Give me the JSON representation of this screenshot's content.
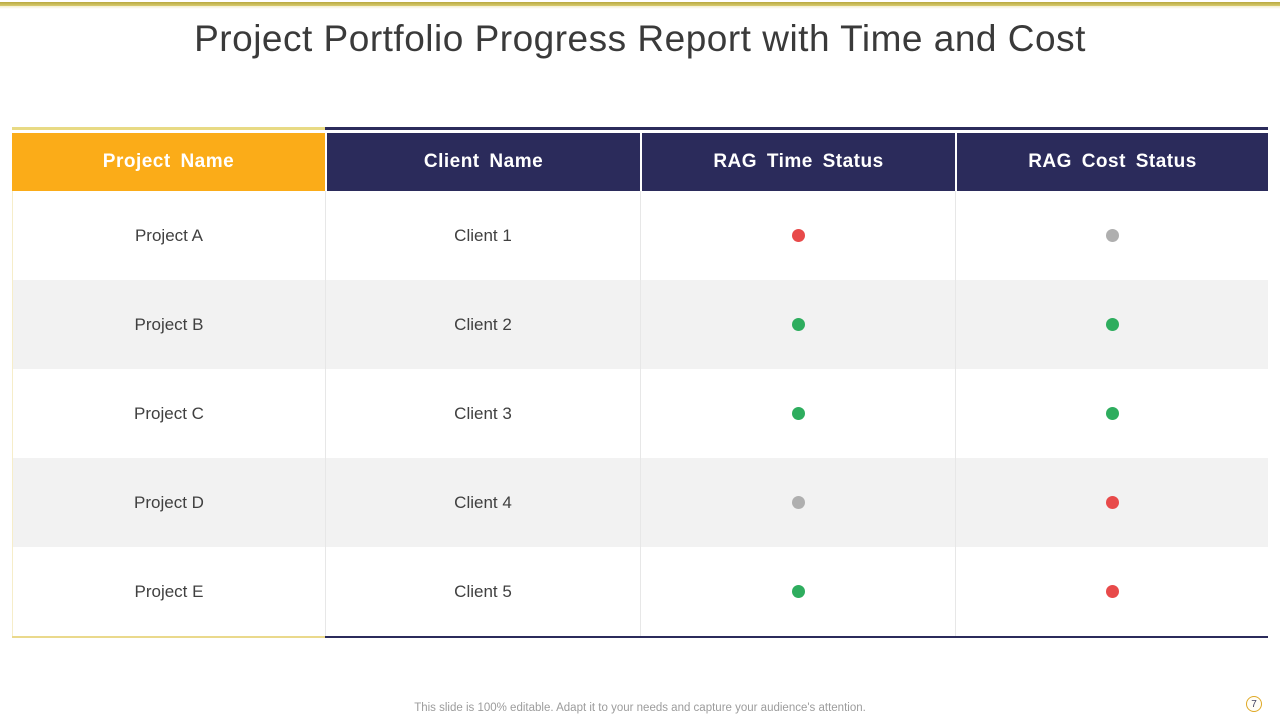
{
  "slide": {
    "title": "Project Portfolio Progress Report with Time and Cost",
    "footer_note": "This slide is 100% editable. Adapt it to your needs and capture your audience's attention.",
    "page_number": "7"
  },
  "colors": {
    "header_gold": "#fbac18",
    "header_navy": "#2b2b5b",
    "rag_red": "#e84a4a",
    "rag_green": "#2ead5e",
    "rag_gray": "#afafaf",
    "row_alt_gray": "#f2f2f2",
    "top_rule_gold": "#c9b84c"
  },
  "table": {
    "columns": [
      "Project Name",
      "Client Name",
      "RAG Time Status",
      "RAG Cost Status"
    ],
    "rows": [
      {
        "project": "Project A",
        "client": "Client 1",
        "time_status": "red",
        "cost_status": "gray"
      },
      {
        "project": "Project B",
        "client": "Client 2",
        "time_status": "green",
        "cost_status": "green"
      },
      {
        "project": "Project C",
        "client": "Client 3",
        "time_status": "green",
        "cost_status": "green"
      },
      {
        "project": "Project D",
        "client": "Client 4",
        "time_status": "gray",
        "cost_status": "red"
      },
      {
        "project": "Project E",
        "client": "Client 5",
        "time_status": "green",
        "cost_status": "red"
      }
    ]
  }
}
